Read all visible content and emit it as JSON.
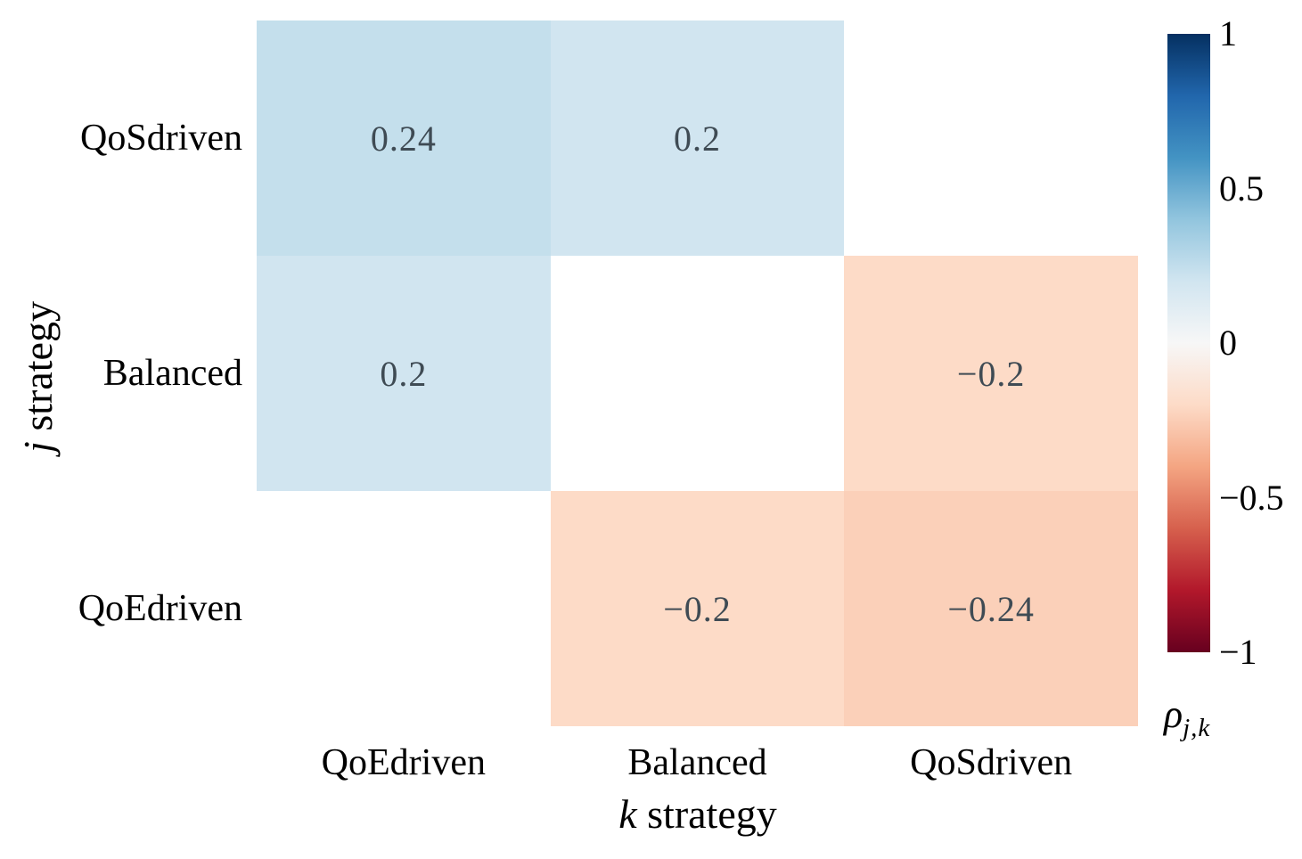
{
  "chart_data": {
    "type": "heatmap",
    "title": "",
    "xlabel": "k strategy",
    "ylabel": "j strategy",
    "x_categories": [
      "QoEdriven",
      "Balanced",
      "QoSdriven"
    ],
    "y_categories": [
      "QoSdriven",
      "Balanced",
      "QoEdriven"
    ],
    "values": [
      [
        0.24,
        0.2,
        null
      ],
      [
        0.2,
        null,
        -0.2
      ],
      [
        null,
        -0.2,
        -0.24
      ]
    ],
    "cell_labels": [
      [
        "0.24",
        "0.2",
        ""
      ],
      [
        "0.2",
        "",
        "−0.2"
      ],
      [
        "",
        "−0.2",
        "−0.24"
      ]
    ],
    "null_color": "#ffffff",
    "annotation_color": "#3f4b54",
    "colormap": "RdBu",
    "vmin": -1,
    "vmax": 1,
    "palette_top_to_bottom": [
      "#053061",
      "#2166ac",
      "#4393c3",
      "#92c5de",
      "#d1e5f0",
      "#f7f7f7",
      "#fddbc7",
      "#f4a582",
      "#d6604d",
      "#b2182b",
      "#67001f"
    ],
    "colorbar": {
      "ticks": [
        "1",
        "0.5",
        "0",
        "−0.5",
        "−1"
      ],
      "tick_values": [
        1,
        0.5,
        0,
        -0.5,
        -1
      ],
      "label_symbol": "ρ",
      "label_subscript": "j,k"
    },
    "legend_position": "right",
    "grid": false
  },
  "labels": {
    "y_axis_italic": "j",
    "y_axis_rest": " strategy",
    "x_axis_italic": "k",
    "x_axis_rest": " strategy"
  }
}
